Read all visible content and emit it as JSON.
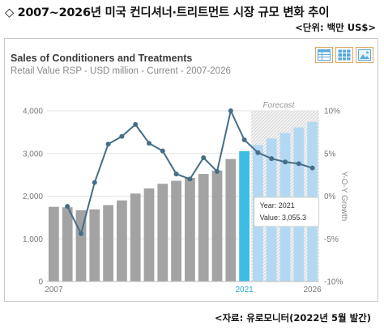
{
  "header": {
    "title": "◇ 2007~2026년 미국 컨디셔너·트리트먼트 시장 규모 변화 추이",
    "unit": "<단위: 백만 US$>",
    "source": "<자료: 유로모니터(2022년 5월 발간)"
  },
  "toolbar": {
    "icons": [
      "table-view-icon",
      "grid-view-icon",
      "chart-image-icon"
    ]
  },
  "colors": {
    "bar_actual": "#a3a3a3",
    "bar_highlight": "#3dbde3",
    "bar_forecast": "#b3d9f2",
    "line": "#456e87",
    "forecast_hatch": "#cfcfcf"
  },
  "chart_data": {
    "type": "bar",
    "title": "Sales of Conditioners and Treatments",
    "subtitle": "Retail Value RSP - USD million - Current - 2007-2026",
    "years": [
      2007,
      2008,
      2009,
      2010,
      2011,
      2012,
      2013,
      2014,
      2015,
      2016,
      2017,
      2018,
      2019,
      2020,
      2021,
      2022,
      2023,
      2024,
      2025,
      2026
    ],
    "series": [
      {
        "name": "Retail Value RSP",
        "axis": "left",
        "values": [
          1750,
          1740,
          1670,
          1690,
          1790,
          1900,
          2060,
          2180,
          2290,
          2360,
          2430,
          2520,
          2600,
          2870,
          3055.3,
          3200,
          3350,
          3480,
          3610,
          3740
        ]
      },
      {
        "name": "Y-O-Y Growth",
        "axis": "right",
        "values": [
          null,
          -1.2,
          -4.4,
          1.6,
          6.1,
          7.0,
          8.4,
          6.2,
          5.3,
          2.6,
          2.0,
          4.5,
          2.9,
          10.0,
          6.6,
          5.1,
          4.4,
          4.0,
          3.8,
          3.3
        ]
      }
    ],
    "ylim_left": [
      0,
      4000
    ],
    "yticks_left": [
      "0",
      "1,000",
      "2,000",
      "3,000",
      "4,000"
    ],
    "ylim_right": [
      -10,
      10
    ],
    "yticks_right": [
      "-10%",
      "-5%",
      "0%",
      "5%",
      "10%"
    ],
    "ylabel_right": "Y-O-Y Growth",
    "xtick_labels": [
      {
        "year": 2007,
        "label": "2007"
      },
      {
        "year": 2021,
        "label": "2021"
      },
      {
        "year": 2026,
        "label": "2026"
      }
    ],
    "highlight_year": 2021,
    "forecast_start_year": 2022,
    "forecast_label": "Forecast",
    "grid": "horizontal",
    "tooltip": {
      "year_label": "Year: 2021",
      "value_label": "Value: 3,055.3"
    }
  }
}
